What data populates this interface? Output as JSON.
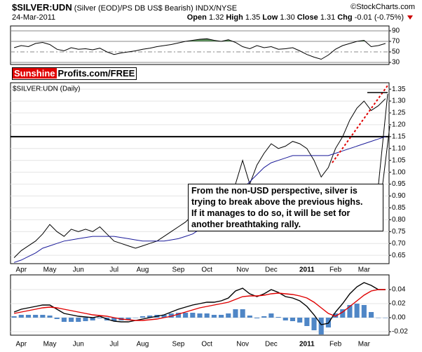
{
  "chart_data": [
    {
      "type": "line",
      "ylim": [
        26,
        99.3
      ],
      "yticks": [
        90,
        70,
        50,
        30
      ],
      "grid": true,
      "fill_above": 70,
      "fill_color": "#5b8c5b",
      "series": [
        {
          "color": "#000000",
          "values": [
            58,
            62,
            60,
            66,
            68,
            64,
            55,
            52,
            58,
            55,
            56,
            54,
            57,
            50,
            45,
            48,
            50,
            52,
            55,
            57,
            60,
            62,
            64,
            67,
            70,
            72,
            74,
            75,
            72,
            70,
            73,
            68,
            60,
            56,
            62,
            58,
            60,
            55,
            56,
            58,
            52,
            45,
            40,
            36,
            44,
            55,
            62,
            66,
            70,
            72,
            60,
            62,
            66
          ]
        }
      ]
    },
    {
      "type": "line",
      "title": "$SILVER:UDN",
      "subtitle": "(Silver (EOD)/PS DB US$ Bearish) INDX/NYSE",
      "credit": "©StockCharts.com",
      "date": "24-Mar-2011",
      "quote": [
        {
          "label": "Open",
          "value": "1.32"
        },
        {
          "label": "High",
          "value": "1.35"
        },
        {
          "label": "Low",
          "value": "1.30"
        },
        {
          "label": "Close",
          "value": "1.31"
        },
        {
          "label": "Chg",
          "value": "-0.01 (-0.75%)"
        }
      ],
      "logo": [
        "Sunshine",
        "Profits.com/FREE"
      ],
      "panel_label": "$SILVER:UDN (Daily)",
      "annotation": [
        "From the non-USD perspective, silver is",
        "trying to break above the previous highs.",
        "If it manages to do so, it will be set for",
        "another breathtaking rally."
      ],
      "categories": [
        null,
        "Apr",
        null,
        null,
        null,
        "May",
        null,
        null,
        null,
        "Jun",
        null,
        null,
        null,
        null,
        "Jul",
        null,
        null,
        null,
        "Aug",
        null,
        null,
        null,
        null,
        "Sep",
        null,
        null,
        null,
        "Oct",
        null,
        null,
        null,
        null,
        "Nov",
        null,
        null,
        null,
        "Dec",
        null,
        null,
        null,
        null,
        "2011",
        null,
        null,
        null,
        "Feb",
        null,
        null,
        null,
        "Mar",
        null,
        null,
        null
      ],
      "ylim": [
        0.615,
        1.377
      ],
      "yticks": [
        0.65,
        {
          "value": 0.7,
          "label": "0.70"
        },
        0.75,
        {
          "value": 0.8,
          "label": "0.80"
        },
        0.85,
        {
          "value": 0.9,
          "label": "0.90"
        },
        0.95,
        {
          "value": 1,
          "label": "1.00"
        },
        1.05,
        {
          "value": 1.1,
          "label": "1.10"
        },
        1.15,
        {
          "value": 1.2,
          "label": "1.20"
        },
        1.25,
        {
          "value": 1.3,
          "label": "1.30"
        },
        1.35
      ],
      "grid": true,
      "hlines": [
        1.15
      ],
      "series": [
        {
          "color": "#000000",
          "values": [
            0.64,
            0.67,
            0.69,
            0.71,
            0.74,
            0.78,
            0.75,
            0.73,
            0.76,
            0.75,
            0.76,
            0.75,
            0.77,
            0.74,
            0.71,
            0.7,
            0.69,
            0.68,
            0.69,
            0.7,
            0.71,
            0.73,
            0.75,
            0.77,
            0.79,
            0.82,
            0.85,
            0.87,
            0.89,
            0.9,
            0.93,
            0.95,
            1.05,
            0.95,
            1.03,
            1.08,
            1.12,
            1.1,
            1.11,
            1.13,
            1.12,
            1.1,
            1.05,
            0.98,
            1.02,
            1.1,
            1.15,
            1.22,
            1.27,
            1.3,
            1.26,
            1.28,
            1.31
          ]
        },
        {
          "color": "#1a1a99",
          "values": [
            0.62,
            0.63,
            0.645,
            0.66,
            0.68,
            0.69,
            0.7,
            0.71,
            0.715,
            0.72,
            0.725,
            0.73,
            0.73,
            0.73,
            0.73,
            0.725,
            0.72,
            0.715,
            0.71,
            0.71,
            0.71,
            0.71,
            0.715,
            0.72,
            0.73,
            0.74,
            0.76,
            0.78,
            0.8,
            0.82,
            0.85,
            0.88,
            0.93,
            0.96,
            0.99,
            1.02,
            1.04,
            1.05,
            1.06,
            1.07,
            1.07,
            1.07,
            1.07,
            1.07,
            1.07,
            1.08,
            1.09,
            1.1,
            1.11,
            1.12,
            1.13,
            1.14,
            1.15
          ]
        }
      ]
    },
    {
      "type": "line",
      "categories": [
        null,
        "Apr",
        null,
        null,
        null,
        "May",
        null,
        null,
        null,
        "Jun",
        null,
        null,
        null,
        null,
        "Jul",
        null,
        null,
        null,
        "Aug",
        null,
        null,
        null,
        null,
        "Sep",
        null,
        null,
        null,
        "Oct",
        null,
        null,
        null,
        null,
        "Nov",
        null,
        null,
        null,
        "Dec",
        null,
        null,
        null,
        null,
        "2011",
        null,
        null,
        null,
        "Feb",
        null,
        null,
        null,
        "Mar",
        null,
        null,
        null
      ],
      "ylim": [
        -0.025,
        0.061
      ],
      "yticks": [
        0.04,
        0.02,
        {
          "value": 0,
          "label": "0.00"
        },
        -0.02
      ],
      "grid": true,
      "series": [
        {
          "kind": "bar",
          "color": "#4f86c6",
          "values": [
            0.002,
            0.004,
            0.004,
            0.004,
            0.004,
            0.003,
            -0.002,
            -0.006,
            -0.006,
            -0.006,
            -0.005,
            -0.004,
            -0.001,
            -0.004,
            -0.005,
            -0.004,
            -0.003,
            0,
            0.002,
            0.003,
            0.004,
            0.004,
            0.006,
            0.007,
            0.007,
            0.007,
            0.006,
            0.006,
            0.004,
            0.004,
            0.006,
            0.012,
            0.012,
            0.003,
            -0.001,
            0.002,
            0.006,
            0.001,
            -0.004,
            -0.005,
            -0.007,
            -0.012,
            -0.018,
            -0.024,
            -0.014,
            0.006,
            0.012,
            0.018,
            0.02,
            0.018,
            0.008,
            0,
            0
          ]
        },
        {
          "kind": "line",
          "color": "#000000",
          "values": [
            0.008,
            0.012,
            0.014,
            0.016,
            0.018,
            0.018,
            0.012,
            0.006,
            0.004,
            0.002,
            0.001,
            0,
            0.002,
            -0.002,
            -0.005,
            -0.006,
            -0.006,
            -0.004,
            -0.002,
            0,
            0.002,
            0.004,
            0.008,
            0.012,
            0.015,
            0.018,
            0.02,
            0.022,
            0.022,
            0.024,
            0.028,
            0.038,
            0.042,
            0.034,
            0.03,
            0.034,
            0.04,
            0.036,
            0.03,
            0.028,
            0.024,
            0.016,
            0.004,
            -0.01,
            -0.008,
            0.008,
            0.02,
            0.034,
            0.044,
            0.05,
            0.046,
            0.04,
            0.04
          ]
        },
        {
          "kind": "line",
          "color": "#e00000",
          "values": [
            0.006,
            0.008,
            0.01,
            0.012,
            0.014,
            0.015,
            0.014,
            0.012,
            0.01,
            0.008,
            0.006,
            0.004,
            0.003,
            0.002,
            0,
            -0.002,
            -0.003,
            -0.004,
            -0.004,
            -0.003,
            -0.002,
            0,
            0.002,
            0.005,
            0.008,
            0.011,
            0.014,
            0.016,
            0.018,
            0.02,
            0.022,
            0.026,
            0.03,
            0.031,
            0.031,
            0.032,
            0.034,
            0.035,
            0.034,
            0.033,
            0.031,
            0.028,
            0.022,
            0.014,
            0.006,
            0.002,
            0.008,
            0.016,
            0.024,
            0.032,
            0.038,
            0.04,
            0.04
          ]
        }
      ]
    }
  ]
}
